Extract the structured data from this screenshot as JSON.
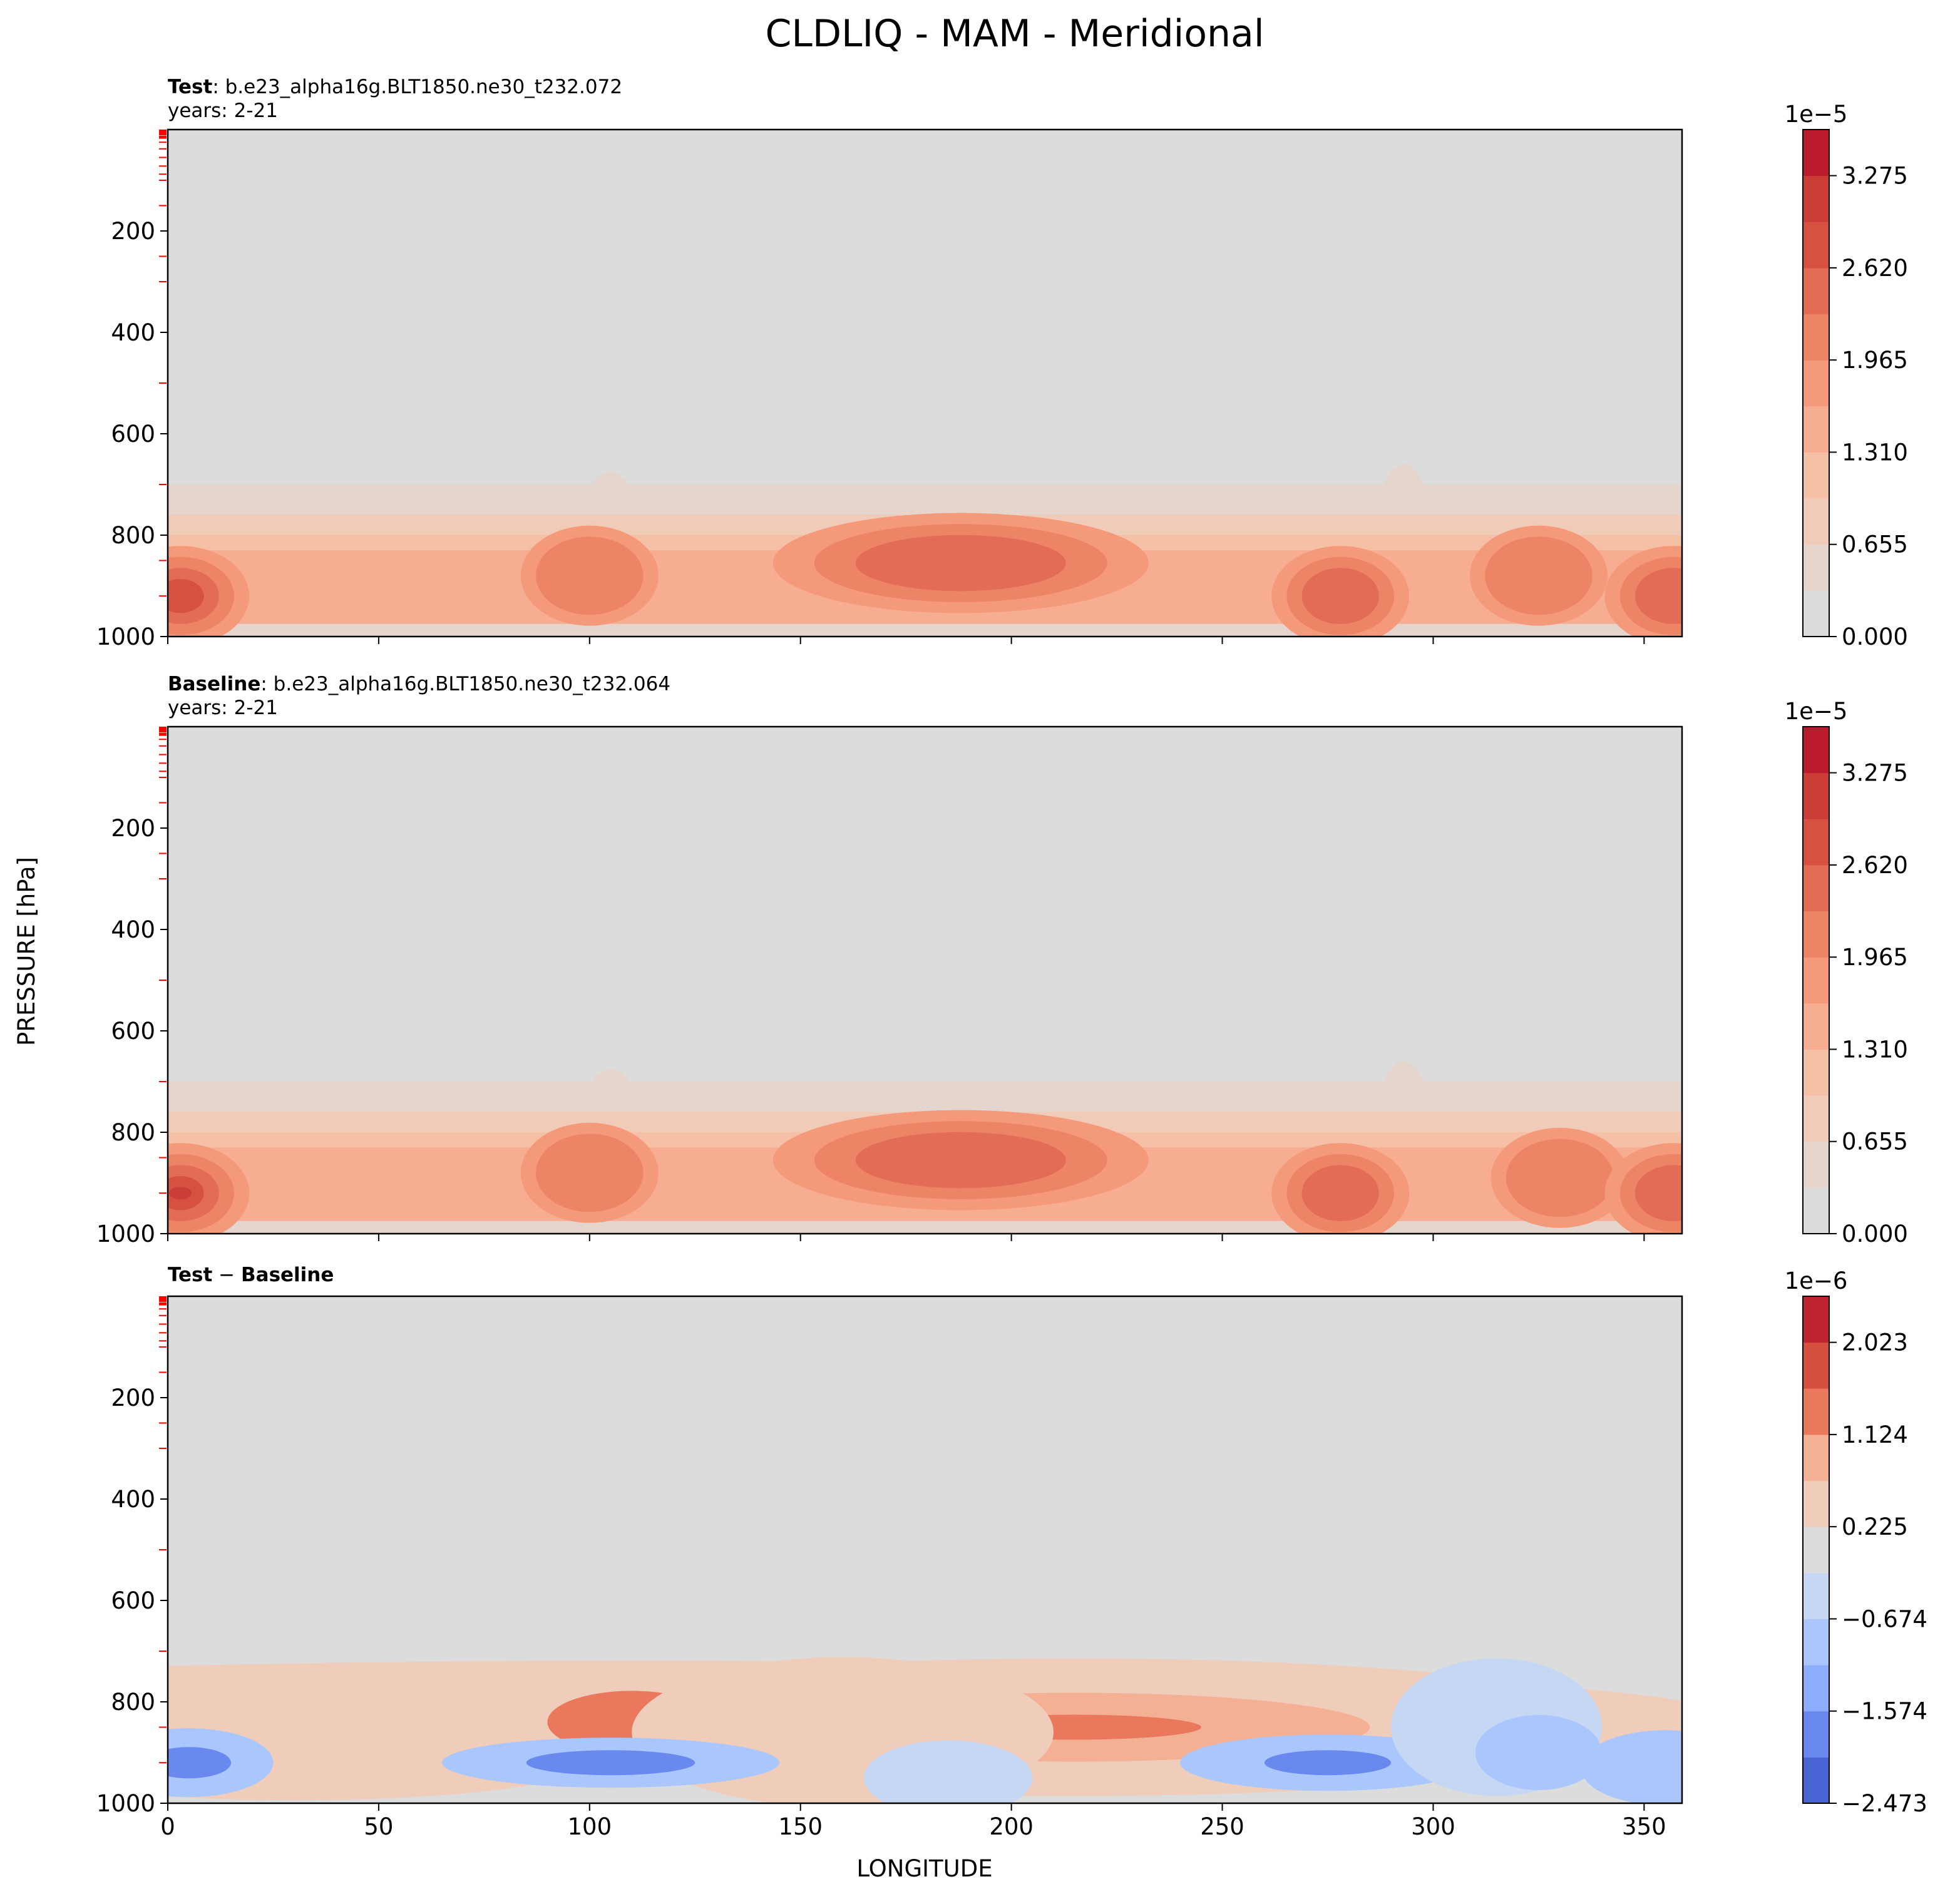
{
  "chart_data": {
    "type": "contour",
    "title": "CLDLIQ - MAM - Meridional",
    "xlabel": "LONGITUDE",
    "ylabel": "PRESSURE [hPa]",
    "xlim": [
      0,
      359
    ],
    "ylim": [
      1000,
      0
    ],
    "x_ticks": [
      "0",
      "50",
      "100",
      "150",
      "200",
      "250",
      "300",
      "350"
    ],
    "y_ticks": [
      "200",
      "400",
      "600",
      "800",
      "1000"
    ],
    "panels": [
      {
        "id": "test",
        "label_bold": "Test",
        "label_rest": ": b.e23_alpha16g.BLT1850.ne30_t232.072",
        "years": "years: 2-21",
        "colorbar": {
          "exponent": "1e−5",
          "ticks": [
            "0.000",
            "0.655",
            "1.310",
            "1.965",
            "2.620",
            "3.275"
          ],
          "levels": [
            "#dddcdc",
            "#e6d5cd",
            "#f0cbb8",
            "#f5c0a6",
            "#f7ad91",
            "#f49a7b",
            "#ec8465",
            "#e36c55",
            "#d65140",
            "#cb3d37",
            "#bb1b2c"
          ]
        },
        "features": [
          {
            "lon": 3,
            "p": 920,
            "level": 8
          },
          {
            "lon": 100,
            "p": 880,
            "level": 6
          },
          {
            "lon": 188,
            "p": 855,
            "level": 7
          },
          {
            "lon": 278,
            "p": 920,
            "level": 7
          },
          {
            "lon": 325,
            "p": 880,
            "level": 6
          },
          {
            "lon": 357,
            "p": 920,
            "level": 7
          }
        ]
      },
      {
        "id": "baseline",
        "label_bold": "Baseline",
        "label_rest": ": b.e23_alpha16g.BLT1850.ne30_t232.064",
        "years": "years: 2-21",
        "colorbar": {
          "exponent": "1e−5",
          "ticks": [
            "0.000",
            "0.655",
            "1.310",
            "1.965",
            "2.620",
            "3.275"
          ],
          "levels": [
            "#dddcdc",
            "#e6d5cd",
            "#f0cbb8",
            "#f5c0a6",
            "#f7ad91",
            "#f49a7b",
            "#ec8465",
            "#e36c55",
            "#d65140",
            "#cb3d37",
            "#bb1b2c"
          ]
        },
        "features": [
          {
            "lon": 3,
            "p": 920,
            "level": 9
          },
          {
            "lon": 100,
            "p": 880,
            "level": 6
          },
          {
            "lon": 188,
            "p": 855,
            "level": 7
          },
          {
            "lon": 278,
            "p": 920,
            "level": 7
          },
          {
            "lon": 330,
            "p": 890,
            "level": 6
          },
          {
            "lon": 357,
            "p": 920,
            "level": 7
          }
        ]
      },
      {
        "id": "diff",
        "label_bold": "Test",
        "label_op": " − ",
        "label_bold2": "Baseline",
        "years": "",
        "colorbar": {
          "exponent": "1e−6",
          "ticks": [
            "−2.473",
            "−1.574",
            "−0.674",
            "0.225",
            "1.124",
            "2.023"
          ],
          "levels": [
            "#4a63d3",
            "#6a89ef",
            "#8badfb",
            "#a9c6fd",
            "#c6d7f4",
            "#dcdcdc",
            "#f0cdbb",
            "#f4b095",
            "#e9785d",
            "#d5503f",
            "#be2530"
          ]
        }
      }
    ]
  }
}
